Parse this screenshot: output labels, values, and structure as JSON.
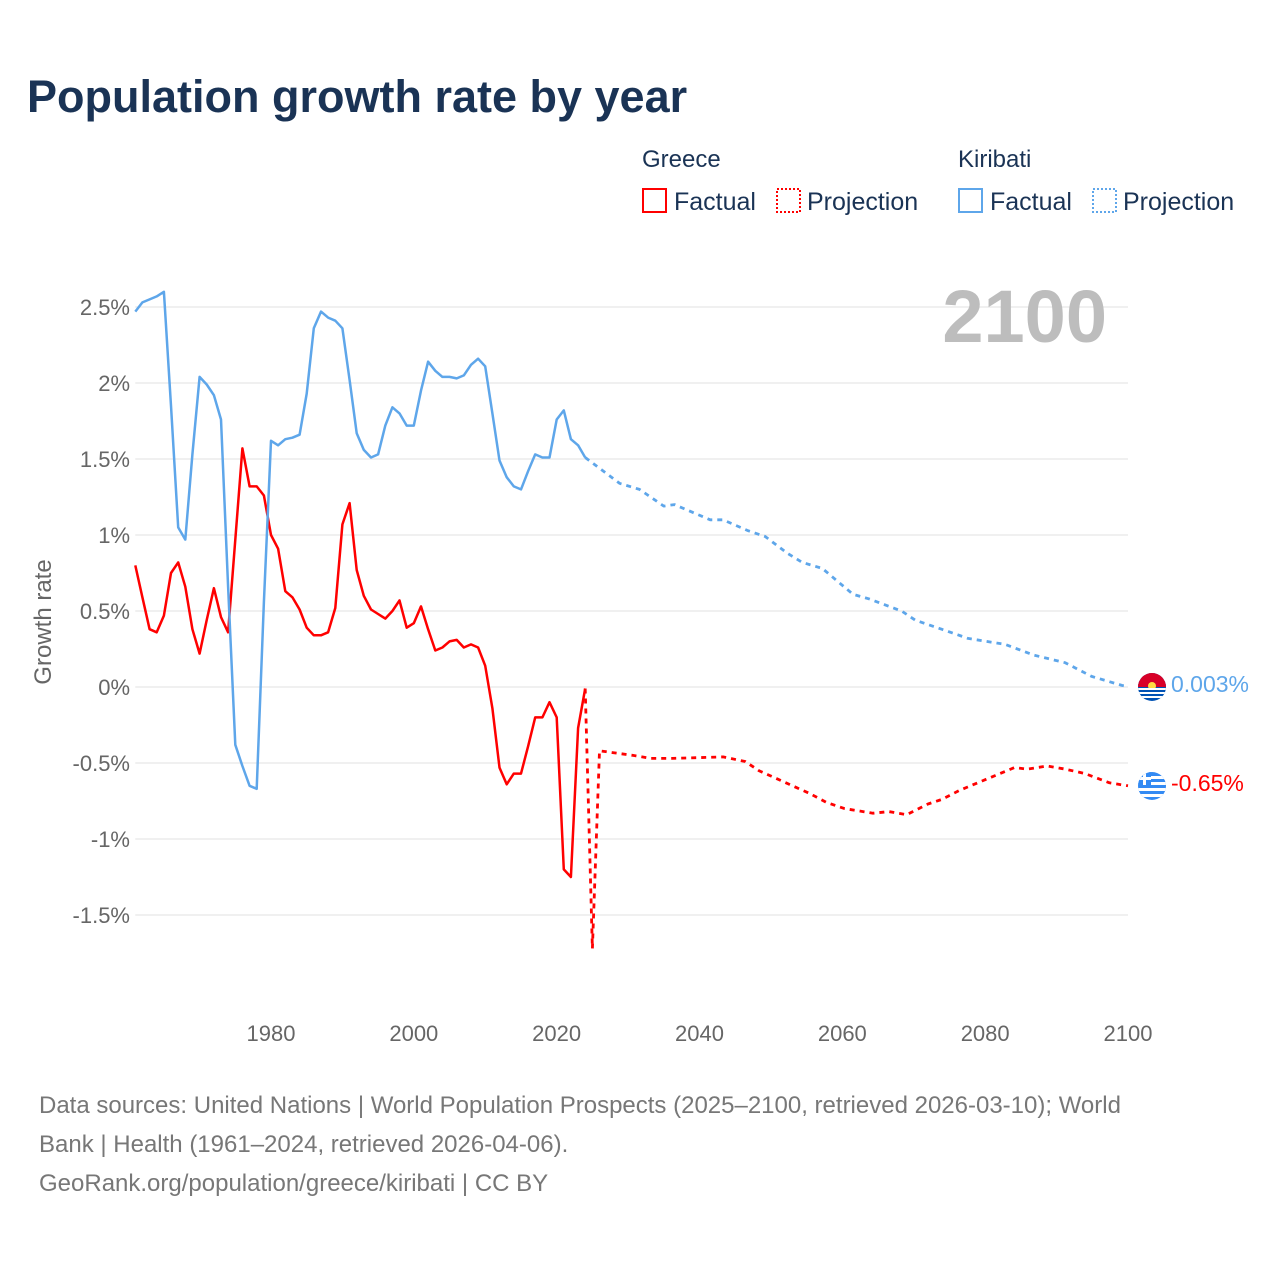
{
  "chart_data": {
    "type": "line",
    "title": "Population growth rate by year",
    "ylabel": "Growth rate",
    "xlabel": "",
    "xlim": [
      1961,
      2100
    ],
    "ylim": [
      -2,
      2.7
    ],
    "y_ticks": [
      2.5,
      2,
      1.5,
      1,
      0.5,
      0,
      -0.5,
      -1,
      -1.5
    ],
    "y_tick_labels": [
      "2.5%",
      "2%",
      "1.5%",
      "1%",
      "0.5%",
      "0%",
      "-0.5%",
      "-1%",
      "-1.5%"
    ],
    "x_ticks": [
      1980,
      2000,
      2020,
      2040,
      2060,
      2080,
      2100
    ],
    "x_tick_labels": [
      "1980",
      "2000",
      "2020",
      "2040",
      "2060",
      "2080",
      "2100"
    ],
    "grid": true,
    "year_label": "2100",
    "legend": {
      "placement": "top-right",
      "groups": [
        {
          "name": "Greece",
          "factual": "Factual",
          "projection": "Projection",
          "color": "#ff0000"
        },
        {
          "name": "Kiribati",
          "factual": "Factual",
          "projection": "Projection",
          "color": "#5ea6ea"
        }
      ]
    },
    "series": [
      {
        "name": "Greece",
        "color": "#ff0000",
        "end_label": "-0.65%",
        "factual": {
          "x": [
            1961,
            1962,
            1963,
            1964,
            1965,
            1966,
            1967,
            1968,
            1969,
            1970,
            1971,
            1972,
            1973,
            1974,
            1975,
            1976,
            1977,
            1978,
            1979,
            1980,
            1981,
            1982,
            1983,
            1984,
            1985,
            1986,
            1987,
            1988,
            1989,
            1990,
            1991,
            1992,
            1993,
            1994,
            1995,
            1996,
            1997,
            1998,
            1999,
            2000,
            2001,
            2002,
            2003,
            2004,
            2005,
            2006,
            2007,
            2008,
            2009,
            2010,
            2011,
            2012,
            2013,
            2014,
            2015,
            2016,
            2017,
            2018,
            2019,
            2020,
            2021,
            2022,
            2023,
            2024
          ],
          "y": [
            0.8,
            0.59,
            0.38,
            0.36,
            0.47,
            0.75,
            0.82,
            0.66,
            0.38,
            0.22,
            0.44,
            0.65,
            0.46,
            0.36,
            0.97,
            1.57,
            1.32,
            1.32,
            1.26,
            1.0,
            0.91,
            0.63,
            0.59,
            0.51,
            0.39,
            0.34,
            0.34,
            0.36,
            0.52,
            1.07,
            1.21,
            0.77,
            0.6,
            0.51,
            0.48,
            0.45,
            0.5,
            0.57,
            0.39,
            0.42,
            0.53,
            0.38,
            0.24,
            0.26,
            0.3,
            0.31,
            0.26,
            0.28,
            0.26,
            0.14,
            -0.14,
            -0.53,
            -0.64,
            -0.57,
            -0.57,
            -0.39,
            -0.2,
            -0.2,
            -0.1,
            -0.2,
            -1.2,
            -1.25,
            -0.27,
            -0.01
          ]
        },
        "projection": {
          "x": [
            2024,
            2025,
            2026,
            2030.7,
            2033.2,
            2036.2,
            2043.3,
            2046.4,
            2048.3,
            2053.5,
            2055.4,
            2057.8,
            2060.3,
            2064.3,
            2066.5,
            2069,
            2072,
            2073.9,
            2076.4,
            2080,
            2084.1,
            2085.9,
            2088.7,
            2091.2,
            2094,
            2097.4,
            2100
          ],
          "y": [
            -0.01,
            -1.72,
            -0.42,
            -0.45,
            -0.47,
            -0.47,
            -0.46,
            -0.49,
            -0.55,
            -0.66,
            -0.7,
            -0.76,
            -0.8,
            -0.83,
            -0.82,
            -0.84,
            -0.77,
            -0.74,
            -0.68,
            -0.61,
            -0.53,
            -0.54,
            -0.52,
            -0.54,
            -0.57,
            -0.63,
            -0.65
          ]
        }
      },
      {
        "name": "Kiribati",
        "color": "#5ea6ea",
        "end_label": "0.003%",
        "factual": {
          "x": [
            1961,
            1962,
            1963,
            1964,
            1965,
            1966,
            1967,
            1968,
            1969,
            1970,
            1971,
            1972,
            1973,
            1974,
            1975,
            1976,
            1977,
            1978,
            1979,
            1980,
            1981,
            1982,
            1983,
            1984,
            1985,
            1986,
            1987,
            1988,
            1989,
            1990,
            1991,
            1992,
            1993,
            1994,
            1995,
            1996,
            1997,
            1998,
            1999,
            2000,
            2001,
            2002,
            2003,
            2004,
            2005,
            2006,
            2007,
            2008,
            2009,
            2010,
            2011,
            2012,
            2013,
            2014,
            2015,
            2016,
            2017,
            2018,
            2019,
            2020,
            2021,
            2022,
            2023,
            2024
          ],
          "y": [
            2.47,
            2.53,
            2.55,
            2.57,
            2.6,
            1.85,
            1.05,
            0.97,
            1.53,
            2.04,
            1.99,
            1.92,
            1.76,
            0.66,
            -0.38,
            -0.52,
            -0.65,
            -0.67,
            0.56,
            1.62,
            1.59,
            1.63,
            1.64,
            1.66,
            1.93,
            2.36,
            2.47,
            2.43,
            2.41,
            2.36,
            2.02,
            1.67,
            1.56,
            1.51,
            1.53,
            1.72,
            1.84,
            1.8,
            1.72,
            1.72,
            1.95,
            2.14,
            2.08,
            2.04,
            2.04,
            2.03,
            2.05,
            2.12,
            2.16,
            2.11,
            1.8,
            1.49,
            1.38,
            1.32,
            1.3,
            1.42,
            1.53,
            1.51,
            1.51,
            1.76,
            1.82,
            1.63,
            1.59,
            1.51
          ]
        },
        "projection": {
          "x": [
            2024,
            2028.8,
            2031.6,
            2035,
            2036.5,
            2041.5,
            2043.3,
            2046.7,
            2049.2,
            2052.3,
            2054.4,
            2057.2,
            2061.5,
            2063.7,
            2068.3,
            2070.2,
            2073.9,
            2077.6,
            2082.8,
            2086.8,
            2091.2,
            2094.9,
            2099.2,
            2100
          ],
          "y": [
            1.51,
            1.34,
            1.3,
            1.19,
            1.2,
            1.1,
            1.1,
            1.03,
            0.99,
            0.88,
            0.82,
            0.78,
            0.61,
            0.58,
            0.5,
            0.44,
            0.38,
            0.32,
            0.28,
            0.21,
            0.16,
            0.07,
            0.01,
            0.003
          ]
        }
      }
    ]
  },
  "footer": {
    "line1": "Data sources: United Nations | World Population Prospects (2025–2100, retrieved 2026-03-10); World",
    "line2": "Bank | Health (1961–2024, retrieved 2026-04-06).",
    "line3": "GeoRank.org/population/greece/kiribati | CC BY"
  }
}
